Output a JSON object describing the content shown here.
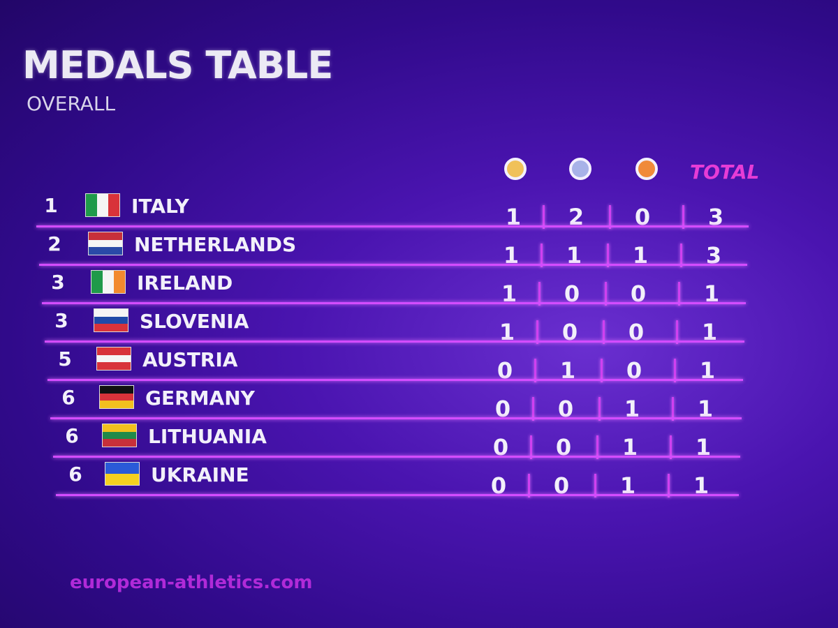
{
  "header": {
    "title": "MEDALS TABLE",
    "subtitle": "OVERALL",
    "total_label": "TOTAL"
  },
  "table": {
    "rows": [
      {
        "rank": 1,
        "country": "ITALY",
        "gold": 1,
        "silver": 2,
        "bronze": 0,
        "total": 3
      },
      {
        "rank": 2,
        "country": "NETHERLANDS",
        "gold": 1,
        "silver": 1,
        "bronze": 1,
        "total": 3
      },
      {
        "rank": 3,
        "country": "IRELAND",
        "gold": 1,
        "silver": 0,
        "bronze": 0,
        "total": 1
      },
      {
        "rank": 3,
        "country": "SLOVENIA",
        "gold": 1,
        "silver": 0,
        "bronze": 0,
        "total": 1
      },
      {
        "rank": 5,
        "country": "AUSTRIA",
        "gold": 0,
        "silver": 1,
        "bronze": 0,
        "total": 1
      },
      {
        "rank": 6,
        "country": "GERMANY",
        "gold": 0,
        "silver": 0,
        "bronze": 1,
        "total": 1
      },
      {
        "rank": 6,
        "country": "LITHUANIA",
        "gold": 0,
        "silver": 0,
        "bronze": 1,
        "total": 1
      },
      {
        "rank": 6,
        "country": "UKRAINE",
        "gold": 0,
        "silver": 0,
        "bronze": 1,
        "total": 1
      }
    ]
  },
  "footer": {
    "website": "european-athletics.com"
  }
}
